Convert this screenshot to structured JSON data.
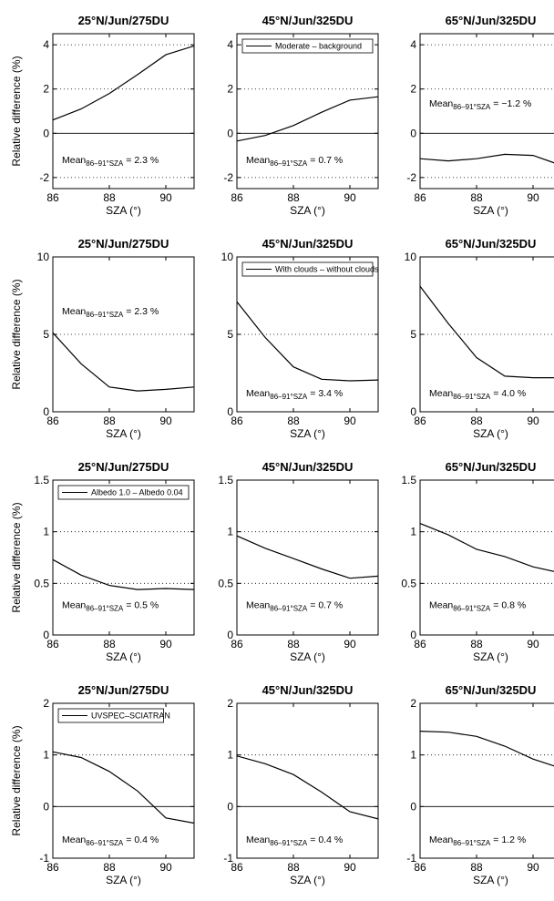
{
  "chart_data": {
    "type": "line",
    "xlabel": "SZA (°)",
    "ylabel": "Relative difference (%)",
    "xlim": [
      86,
      91
    ],
    "xticks": [
      86,
      88,
      90
    ],
    "x": [
      86,
      87,
      88,
      89,
      90,
      91
    ],
    "rows": [
      {
        "ylim": [
          -2.5,
          4.5
        ],
        "yticks": [
          -2,
          0,
          2,
          4
        ],
        "zero_line": true,
        "dotted": [
          -2,
          2,
          4
        ],
        "legend": "Moderate – background",
        "legend_col": 1,
        "panels": [
          {
            "title": "25°N/Jun/275DU",
            "values": [
              0.6,
              1.1,
              1.8,
              2.65,
              3.55,
              3.95
            ],
            "mean": "= 2.3 %",
            "mean_y": -1.35
          },
          {
            "title": "45°N/Jun/325DU",
            "values": [
              -0.35,
              -0.1,
              0.35,
              0.95,
              1.5,
              1.65
            ],
            "mean": "= 0.7 %",
            "mean_y": -1.35
          },
          {
            "title": "65°N/Jun/325DU",
            "values": [
              -1.15,
              -1.25,
              -1.15,
              -0.95,
              -1.0,
              -1.45
            ],
            "mean": "= −1.2 %",
            "mean_y": 1.2
          }
        ]
      },
      {
        "ylim": [
          0,
          10
        ],
        "yticks": [
          0,
          5,
          10
        ],
        "zero_line": false,
        "dotted": [
          5
        ],
        "legend": "With clouds – without clouds",
        "legend_col": 1,
        "panels": [
          {
            "title": "25°N/Jun/275DU",
            "values": [
              5.1,
              3.1,
              1.6,
              1.35,
              1.45,
              1.6
            ],
            "mean": "= 2.3 %",
            "mean_y": 6.3
          },
          {
            "title": "45°N/Jun/325DU",
            "values": [
              7.1,
              4.8,
              2.9,
              2.1,
              2.0,
              2.05
            ],
            "mean": "= 3.4 %",
            "mean_y": 1.0
          },
          {
            "title": "65°N/Jun/325DU",
            "values": [
              8.1,
              5.7,
              3.5,
              2.3,
              2.2,
              2.2
            ],
            "mean": "= 4.0 %",
            "mean_y": 1.0
          }
        ]
      },
      {
        "ylim": [
          0,
          1.5
        ],
        "yticks": [
          0,
          0.5,
          1,
          1.5
        ],
        "zero_line": false,
        "dotted": [
          0.5,
          1
        ],
        "legend": "Albedo 1.0 – Albedo 0.04",
        "legend_col": 0,
        "panels": [
          {
            "title": "25°N/Jun/275DU",
            "values": [
              0.73,
              0.58,
              0.48,
              0.44,
              0.45,
              0.44
            ],
            "mean": "= 0.5 %",
            "mean_y": 0.26
          },
          {
            "title": "45°N/Jun/325DU",
            "values": [
              0.96,
              0.84,
              0.74,
              0.64,
              0.55,
              0.57
            ],
            "mean": "= 0.7 %",
            "mean_y": 0.26
          },
          {
            "title": "65°N/Jun/325DU",
            "values": [
              1.08,
              0.97,
              0.83,
              0.76,
              0.66,
              0.6
            ],
            "mean": "= 0.8 %",
            "mean_y": 0.26
          }
        ]
      },
      {
        "ylim": [
          -1,
          2
        ],
        "yticks": [
          -1,
          0,
          1,
          2
        ],
        "zero_line": true,
        "dotted": [
          1
        ],
        "legend": "UVSPEC–SCIATRAN",
        "legend_col": 0,
        "panels": [
          {
            "title": "25°N/Jun/275DU",
            "values": [
              1.06,
              0.95,
              0.68,
              0.3,
              -0.22,
              -0.32
            ],
            "mean": "= 0.4 %",
            "mean_y": -0.7
          },
          {
            "title": "45°N/Jun/325DU",
            "values": [
              0.98,
              0.83,
              0.62,
              0.28,
              -0.1,
              -0.24
            ],
            "mean": "= 0.4 %",
            "mean_y": -0.7
          },
          {
            "title": "65°N/Jun/325DU",
            "values": [
              1.46,
              1.44,
              1.36,
              1.17,
              0.92,
              0.74
            ],
            "mean": "= 1.2 %",
            "mean_y": -0.7
          }
        ]
      }
    ],
    "mean_label": "Mean",
    "mean_subscript": "86–91°SZA"
  }
}
